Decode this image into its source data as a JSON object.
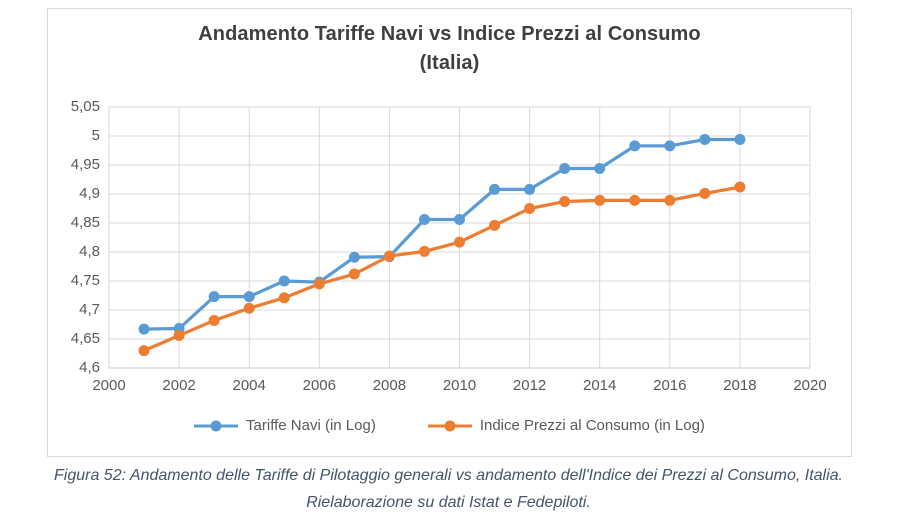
{
  "chart": {
    "title_line1": "Andamento Tariffe Navi vs Indice Prezzi al Consumo",
    "title_line2": "(Italia)",
    "legend": [
      {
        "label": "Tariffe Navi (in Log)",
        "color": "#5B9BD5"
      },
      {
        "label": "Indice Prezzi al Consumo (in Log)",
        "color": "#ED7D31"
      }
    ]
  },
  "chart_data": {
    "type": "line",
    "title": "Andamento Tariffe Navi vs Indice Prezzi al Consumo (Italia)",
    "x": [
      2001,
      2002,
      2003,
      2004,
      2005,
      2006,
      2007,
      2008,
      2009,
      2010,
      2011,
      2012,
      2013,
      2014,
      2015,
      2016,
      2017,
      2018
    ],
    "series": [
      {
        "name": "Tariffe Navi (in Log)",
        "color": "#5B9BD5",
        "values": [
          4.667,
          4.668,
          4.723,
          4.723,
          4.75,
          4.748,
          4.791,
          4.792,
          4.856,
          4.856,
          4.908,
          4.908,
          4.944,
          4.944,
          4.983,
          4.983,
          4.994,
          4.994
        ]
      },
      {
        "name": "Indice Prezzi al Consumo (in Log)",
        "color": "#ED7D31",
        "values": [
          4.63,
          4.656,
          4.682,
          4.703,
          4.721,
          4.745,
          4.762,
          4.793,
          4.801,
          4.817,
          4.846,
          4.875,
          4.887,
          4.889,
          4.889,
          4.889,
          4.901,
          4.912
        ]
      }
    ],
    "xlim": [
      2000,
      2020
    ],
    "ylim": [
      4.6,
      5.05
    ],
    "xticks": {
      "values": [
        2000,
        2002,
        2004,
        2006,
        2008,
        2010,
        2012,
        2014,
        2016,
        2018,
        2020
      ],
      "labels": [
        "2000",
        "2002",
        "2004",
        "2006",
        "2008",
        "2010",
        "2012",
        "2014",
        "2016",
        "2018",
        "2020"
      ]
    },
    "yticks": {
      "values": [
        4.6,
        4.65,
        4.7,
        4.75,
        4.8,
        4.85,
        4.9,
        4.95,
        5.0,
        5.05
      ],
      "labels": [
        "4,6",
        "4,65",
        "4,7",
        "4,75",
        "4,8",
        "4,85",
        "4,9",
        "4,95",
        "5",
        "5,05"
      ]
    },
    "grid": true,
    "legend_position": "bottom",
    "marker": "circle"
  },
  "caption": {
    "line1": "Figura 52: Andamento delle Tariffe di Pilotaggio generali vs andamento dell'Indice dei Prezzi al Consumo, Italia.",
    "line2": "Rielaborazione su dati Istat e Fedepiloti."
  },
  "colors": {
    "grid": "#D9D9D9",
    "axis_line": "#C9C9C9",
    "axis_text": "#595959",
    "title": "#3F3F3F",
    "caption": "#44546A",
    "frame_border": "#D9D9D9"
  }
}
